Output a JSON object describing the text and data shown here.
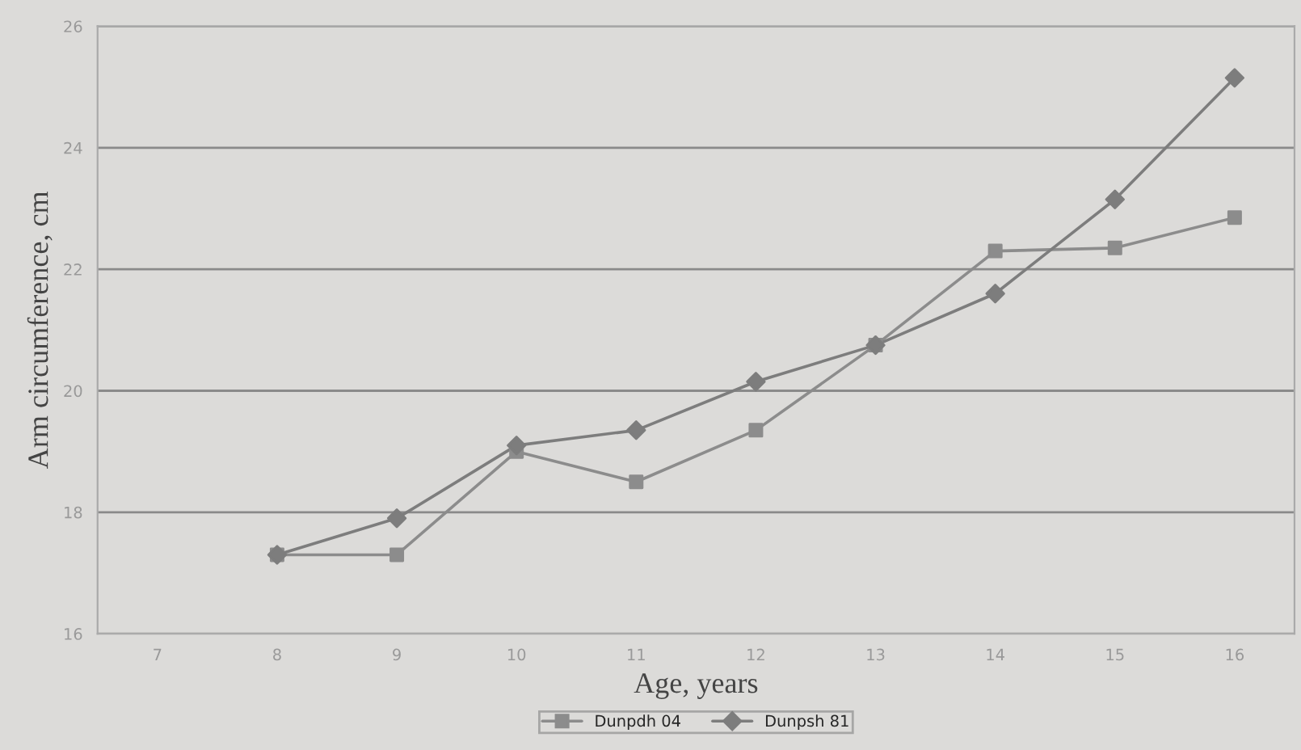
{
  "chart_data": {
    "type": "line",
    "xlabel": "Age, years",
    "ylabel": "Arm circumference, cm",
    "x": [
      8,
      9,
      10,
      11,
      12,
      13,
      14,
      15,
      16
    ],
    "series": [
      {
        "name": "Dunpdh 04",
        "color": "#8c8c8c",
        "marker": "square",
        "values": [
          17.3,
          17.3,
          19.0,
          18.5,
          19.35,
          20.75,
          22.3,
          22.35,
          22.85
        ]
      },
      {
        "name": "Dunpsh 81",
        "color": "#7d7d7d",
        "marker": "diamond",
        "values": [
          17.3,
          17.9,
          19.1,
          19.35,
          20.15,
          20.75,
          21.6,
          23.15,
          25.15
        ]
      }
    ],
    "xlim": [
      6.5,
      16.5
    ],
    "xticks": [
      7,
      8,
      9,
      10,
      11,
      12,
      13,
      14,
      15,
      16
    ],
    "ylim": [
      16,
      26
    ],
    "yticks": [
      16,
      18,
      20,
      22,
      24,
      26
    ],
    "grid": "y",
    "legend": "bottom",
    "line_style": "solid"
  }
}
